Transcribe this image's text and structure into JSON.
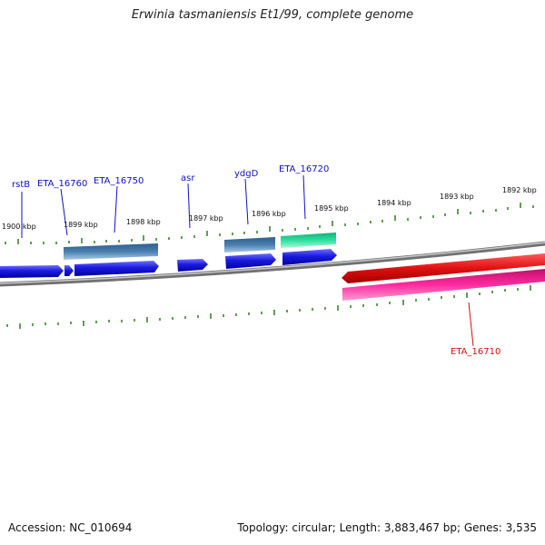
{
  "title": "Erwinia tasmaniensis Et1/99, complete genome",
  "footer": {
    "accession": "Accession: NC_010694",
    "topology": "Topology: circular; Length: 3,883,467 bp; Genes: 3,535"
  },
  "colors": {
    "backbone": "#8a8a8a",
    "tick": "#2e7d1e",
    "cds_forward": "#1a1adf",
    "gene_forward": "#4a7fb0",
    "gene_teal": "#2ee0a0",
    "cds_reverse": "#e01010",
    "gene_reverse": "#ff2aa0",
    "label_forward": "#1010c0",
    "label_reverse": "#d01010"
  },
  "tick_labels": [
    "1900 kbp",
    "1899 kbp",
    "1898 kbp",
    "1897 kbp",
    "1896 kbp",
    "1895 kbp",
    "1894 kbp",
    "1893 kbp",
    "1892 kbp"
  ],
  "gene_labels": [
    "rstB",
    "ETA_16760",
    "ETA_16750",
    "asr",
    "ydgD",
    "ETA_16720",
    "ETA_16710"
  ]
}
